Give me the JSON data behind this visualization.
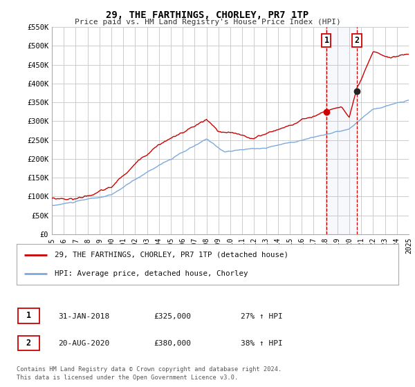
{
  "title": "29, THE FARTHINGS, CHORLEY, PR7 1TP",
  "subtitle": "Price paid vs. HM Land Registry's House Price Index (HPI)",
  "legend_label_red": "29, THE FARTHINGS, CHORLEY, PR7 1TP (detached house)",
  "legend_label_blue": "HPI: Average price, detached house, Chorley",
  "annotation1_date": "31-JAN-2018",
  "annotation1_price": "£325,000",
  "annotation1_hpi": "27% ↑ HPI",
  "annotation2_date": "20-AUG-2020",
  "annotation2_price": "£380,000",
  "annotation2_hpi": "38% ↑ HPI",
  "footnote1": "Contains HM Land Registry data © Crown copyright and database right 2024.",
  "footnote2": "This data is licensed under the Open Government Licence v3.0.",
  "xmin": 1995.0,
  "xmax": 2025.0,
  "ymin": 0,
  "ymax": 550000,
  "red_color": "#cc0000",
  "blue_color": "#7aaadd",
  "vline1_x": 2018.08,
  "vline2_x": 2020.64,
  "dot1_x": 2018.08,
  "dot1_y": 325000,
  "dot2_x": 2020.64,
  "dot2_y": 380000,
  "background_color": "#ffffff",
  "grid_color": "#cccccc",
  "yticks": [
    0,
    50000,
    100000,
    150000,
    200000,
    250000,
    300000,
    350000,
    400000,
    450000,
    500000,
    550000
  ],
  "ytick_labels": [
    "£0",
    "£50K",
    "£100K",
    "£150K",
    "£200K",
    "£250K",
    "£300K",
    "£350K",
    "£400K",
    "£450K",
    "£500K",
    "£550K"
  ],
  "xticks": [
    1995,
    1996,
    1997,
    1998,
    1999,
    2000,
    2001,
    2002,
    2003,
    2004,
    2005,
    2006,
    2007,
    2008,
    2009,
    2010,
    2011,
    2012,
    2013,
    2014,
    2015,
    2016,
    2017,
    2018,
    2019,
    2020,
    2021,
    2022,
    2023,
    2024,
    2025
  ]
}
